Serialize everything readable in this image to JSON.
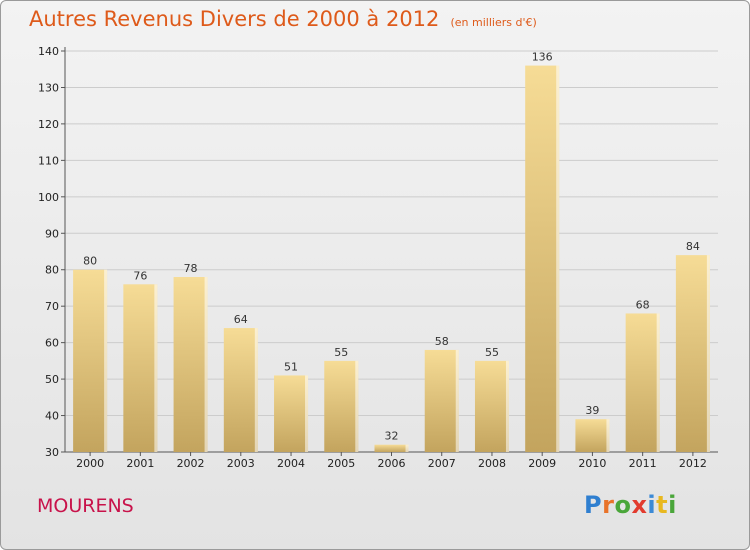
{
  "header": {
    "title": "Autres Revenus Divers de 2000 à 2012",
    "subtitle": "(en milliers d'€)"
  },
  "footer": {
    "place": "MOURENS",
    "brand": "Proxiti"
  },
  "colors": {
    "title": "#de5a1a",
    "place": "#c8124a",
    "bar_light": "#f6dc96",
    "bar_dark": "#c3a45e",
    "gridline": "#cccccc",
    "brand_letters": [
      "#2f7fd0",
      "#e8732a",
      "#4aa63a",
      "#e23b2e",
      "#3c8ad6",
      "#e8b820",
      "#4aa63a"
    ]
  },
  "chart_data": {
    "type": "bar",
    "title": "Autres Revenus Divers de 2000 à 2012",
    "subtitle": "(en milliers d'€)",
    "categories": [
      "2000",
      "2001",
      "2002",
      "2003",
      "2004",
      "2005",
      "2006",
      "2007",
      "2008",
      "2009",
      "2010",
      "2011",
      "2012"
    ],
    "values": [
      80,
      76,
      78,
      64,
      51,
      55,
      32,
      58,
      55,
      136,
      39,
      68,
      84
    ],
    "ylim": [
      30,
      140
    ],
    "yticks": [
      30,
      40,
      50,
      60,
      70,
      80,
      90,
      100,
      110,
      120,
      130,
      140
    ],
    "grid": true,
    "legend": "none",
    "show_data_labels": true
  }
}
